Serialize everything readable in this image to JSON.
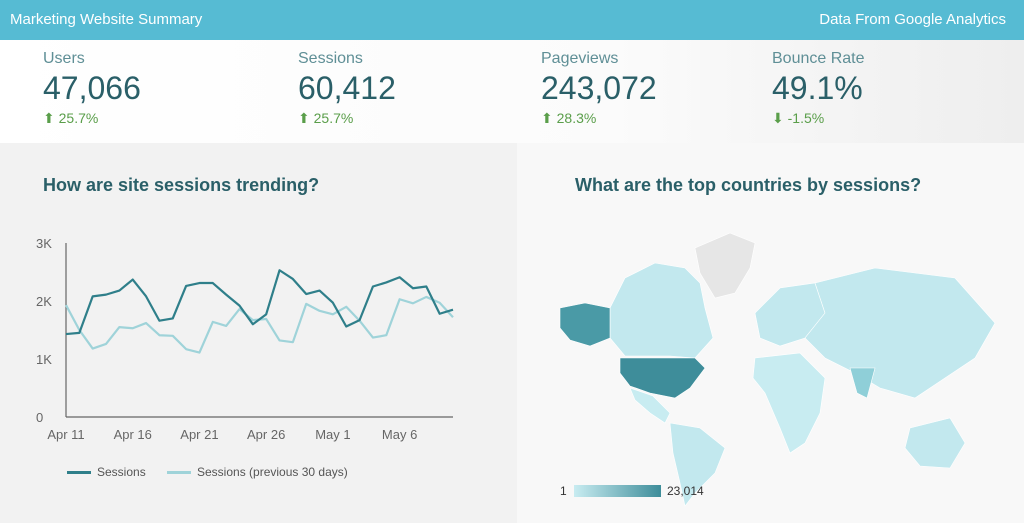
{
  "header": {
    "title": "Marketing Website Summary",
    "source": "Data From Google Analytics"
  },
  "kpis": [
    {
      "label": "Users",
      "value": "47,066",
      "change": "25.7%",
      "direction": "up"
    },
    {
      "label": "Sessions",
      "value": "60,412",
      "change": "25.7%",
      "direction": "up"
    },
    {
      "label": "Pageviews",
      "value": "243,072",
      "change": "28.3%",
      "direction": "up"
    },
    {
      "label": "Bounce Rate",
      "value": "49.1%",
      "change": "-1.5%",
      "direction": "down"
    }
  ],
  "colors": {
    "header": "#56bbd3",
    "sessions": "#2f7f8a",
    "previous": "#9fd3d9",
    "positive": "#5a9e4a",
    "map_high": "#3e8d9a",
    "map_low": "#c8ecf1"
  },
  "trend": {
    "title": "How are site sessions trending?"
  },
  "map": {
    "title": "What are the top countries by sessions?",
    "legend_min": "1",
    "legend_max": "23,014"
  },
  "chart_data": {
    "type": "line",
    "title": "How are site sessions trending?",
    "x_tick_labels": [
      "Apr 11",
      "Apr 16",
      "Apr 21",
      "Apr 26",
      "May 1",
      "May 6"
    ],
    "x_start": "Apr 11",
    "x_end": "May 10",
    "y_tick_labels": [
      "0",
      "1K",
      "2K",
      "3K"
    ],
    "ylim": [
      0,
      3000
    ],
    "grid": false,
    "legend": "bottom-left",
    "series": [
      {
        "name": "Sessions",
        "values": [
          1430,
          1450,
          2080,
          2110,
          2180,
          2370,
          2080,
          1660,
          1700,
          2260,
          2310,
          2310,
          2110,
          1920,
          1600,
          1770,
          2530,
          2380,
          2120,
          2180,
          1970,
          1560,
          1670,
          2250,
          2320,
          2410,
          2220,
          2250,
          1780,
          1850
        ]
      },
      {
        "name": "Sessions (previous 30 days)",
        "values": [
          1930,
          1500,
          1180,
          1260,
          1550,
          1530,
          1620,
          1410,
          1400,
          1170,
          1110,
          1640,
          1570,
          1860,
          1670,
          1690,
          1320,
          1290,
          1950,
          1830,
          1770,
          1900,
          1660,
          1370,
          1410,
          2030,
          1960,
          2070,
          1970,
          1720
        ]
      }
    ]
  }
}
